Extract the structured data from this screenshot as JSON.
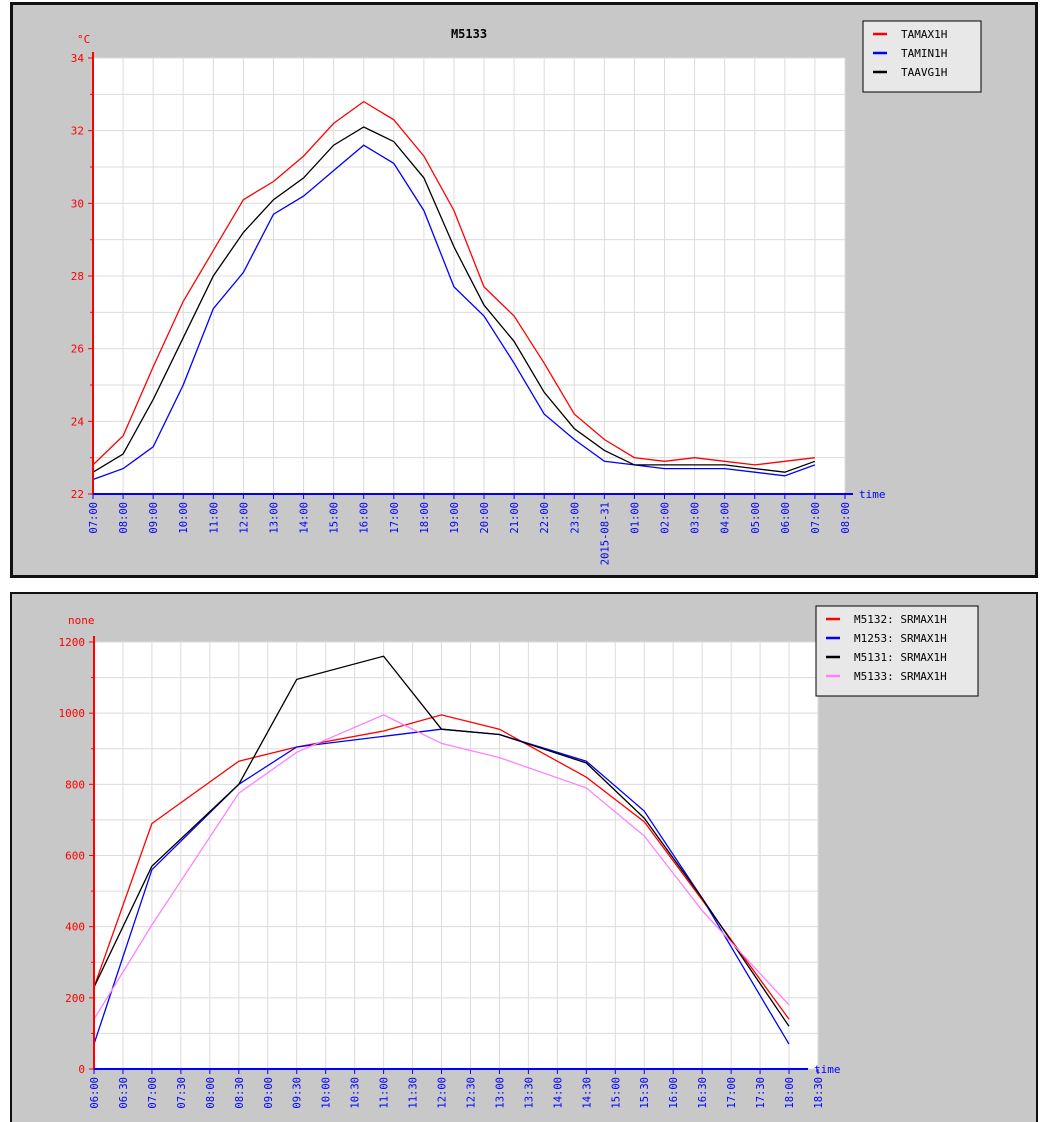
{
  "chart_data": [
    {
      "type": "line",
      "title": "M5133",
      "ylabel": "°C",
      "xlabel": "time",
      "ylim": [
        22,
        34
      ],
      "yticks": [
        22,
        24,
        26,
        28,
        30,
        32,
        34
      ],
      "x_tick_labels": [
        "07:00",
        "08:00",
        "09:00",
        "10:00",
        "11:00",
        "12:00",
        "13:00",
        "14:00",
        "15:00",
        "16:00",
        "17:00",
        "18:00",
        "19:00",
        "20:00",
        "21:00",
        "22:00",
        "23:00",
        "2015-08-31",
        "01:00",
        "02:00",
        "03:00",
        "04:00",
        "05:00",
        "06:00",
        "07:00",
        "08:00"
      ],
      "x": [
        "07:00",
        "08:00",
        "09:00",
        "10:00",
        "11:00",
        "12:00",
        "13:00",
        "14:00",
        "15:00",
        "16:00",
        "17:00",
        "18:00",
        "19:00",
        "20:00",
        "21:00",
        "22:00",
        "23:00",
        "2015-08-31",
        "01:00",
        "02:00",
        "03:00",
        "04:00",
        "05:00",
        "06:00",
        "07:00"
      ],
      "grid": true,
      "legend_position": "top-right",
      "series": [
        {
          "name": "TAMAX1H",
          "color": "#ff0000",
          "values": [
            22.8,
            23.6,
            25.5,
            27.3,
            28.7,
            30.1,
            30.6,
            31.3,
            32.2,
            32.8,
            32.3,
            31.3,
            29.8,
            27.7,
            26.9,
            25.6,
            24.2,
            23.5,
            23.0,
            22.9,
            23.0,
            22.9,
            22.8,
            22.9,
            23.0
          ]
        },
        {
          "name": "TAMIN1H",
          "color": "#0000ff",
          "values": [
            22.4,
            22.7,
            23.3,
            25.0,
            27.1,
            28.1,
            29.7,
            30.2,
            30.9,
            31.6,
            31.1,
            29.8,
            27.7,
            26.9,
            25.6,
            24.2,
            23.5,
            22.9,
            22.8,
            22.7,
            22.7,
            22.7,
            22.6,
            22.5,
            22.8
          ]
        },
        {
          "name": "TAAVG1H",
          "color": "#000000",
          "values": [
            22.6,
            23.1,
            24.6,
            26.3,
            28.0,
            29.2,
            30.1,
            30.7,
            31.6,
            32.1,
            31.7,
            30.7,
            28.8,
            27.2,
            26.2,
            24.8,
            23.8,
            23.2,
            22.8,
            22.8,
            22.8,
            22.8,
            22.7,
            22.6,
            22.9
          ]
        }
      ]
    },
    {
      "type": "line",
      "title": "",
      "ylabel": "none",
      "xlabel": "time",
      "ylim": [
        0,
        1200
      ],
      "yticks": [
        0,
        200,
        400,
        600,
        800,
        1000,
        1200
      ],
      "x_tick_labels": [
        "06:00",
        "06:30",
        "07:00",
        "07:30",
        "08:00",
        "08:30",
        "09:00",
        "09:30",
        "10:00",
        "10:30",
        "11:00",
        "11:30",
        "12:00",
        "12:30",
        "13:00",
        "13:30",
        "14:00",
        "14:30",
        "15:00",
        "15:30",
        "16:00",
        "16:30",
        "17:00",
        "17:30",
        "18:00",
        "18:30"
      ],
      "x": [
        "06:00",
        "07:00",
        "08:30",
        "09:30",
        "11:00",
        "12:00",
        "13:00",
        "14:30",
        "15:30",
        "16:30",
        "18:00"
      ],
      "grid": true,
      "legend_position": "top-right",
      "series": [
        {
          "name": "M5132: SRMAX1H",
          "color": "#ff0000",
          "values": [
            230,
            690,
            865,
            905,
            950,
            995,
            955,
            820,
            695,
            475,
            140
          ]
        },
        {
          "name": "M1253: SRMAX1H",
          "color": "#0000ff",
          "values": [
            70,
            560,
            800,
            905,
            935,
            955,
            940,
            865,
            725,
            480,
            70
          ]
        },
        {
          "name": "M5131: SRMAX1H",
          "color": "#000000",
          "values": [
            230,
            570,
            800,
            1095,
            1160,
            955,
            940,
            860,
            705,
            480,
            120
          ]
        },
        {
          "name": "M5133: SRMAX1H",
          "color": "#ff80ff",
          "values": [
            140,
            405,
            775,
            890,
            995,
            915,
            875,
            790,
            655,
            445,
            180
          ]
        }
      ]
    }
  ]
}
